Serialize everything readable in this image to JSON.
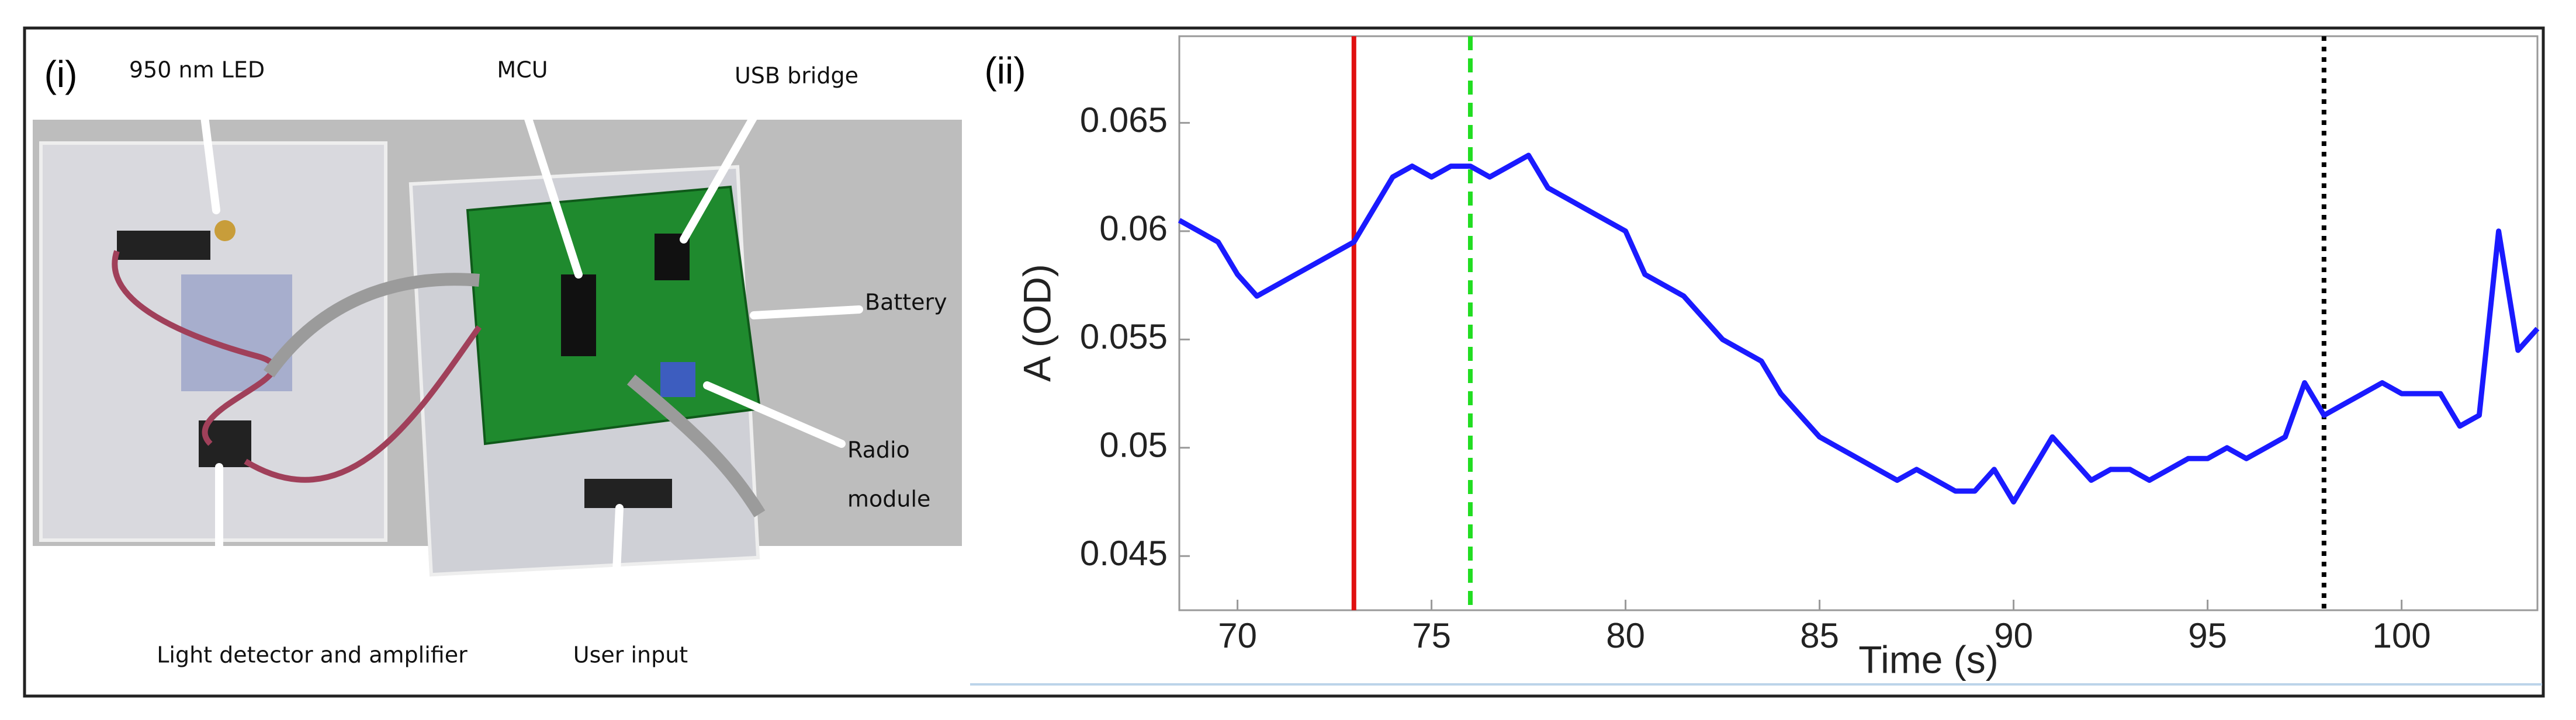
{
  "panels": {
    "left_label": "(i)",
    "right_label": "(ii)"
  },
  "photo": {
    "labels": {
      "led": "950 nm LED",
      "mcu": "MCU",
      "usb": "USB bridge",
      "battery": "Battery",
      "radio": [
        "Radio",
        "module"
      ],
      "detector": "Light detector and amplifier",
      "user_input": "User input"
    }
  },
  "chart_data": {
    "type": "line",
    "x_label": "Time (s)",
    "y_label": "A (OD)",
    "xlim": [
      68.5,
      103.5
    ],
    "ylim": [
      0.0425,
      0.069
    ],
    "xticks": [
      70,
      75,
      80,
      85,
      90,
      95,
      100
    ],
    "yticks": [
      0.045,
      0.05,
      0.055,
      0.06,
      0.065
    ],
    "x": [
      68.5,
      69,
      69.5,
      70,
      70.5,
      71,
      71.5,
      72,
      72.5,
      73,
      73.5,
      74,
      74.5,
      75,
      75.5,
      76,
      76.5,
      77,
      77.5,
      78,
      78.5,
      79,
      79.5,
      80,
      80.5,
      81,
      81.5,
      82,
      82.5,
      83,
      83.5,
      84,
      84.5,
      85,
      85.5,
      86,
      86.5,
      87,
      87.5,
      88,
      88.5,
      89,
      89.5,
      90,
      90.5,
      91,
      91.5,
      92,
      92.5,
      93,
      93.5,
      94,
      94.5,
      95,
      95.5,
      96,
      96.5,
      97,
      97.5,
      98,
      98.5,
      99,
      99.5,
      100,
      100.5,
      101,
      101.5,
      102,
      102.5,
      103,
      103.5
    ],
    "series": [
      {
        "color": "#1a1aff",
        "values": [
          0.0605,
          0.06,
          0.0595,
          0.058,
          0.057,
          0.0575,
          0.058,
          0.0585,
          0.059,
          0.0595,
          0.061,
          0.0625,
          0.063,
          0.0625,
          0.063,
          0.063,
          0.0625,
          0.063,
          0.0635,
          0.062,
          0.0615,
          0.061,
          0.0605,
          0.06,
          0.058,
          0.0575,
          0.057,
          0.056,
          0.055,
          0.0545,
          0.054,
          0.0525,
          0.0515,
          0.0505,
          0.05,
          0.0495,
          0.049,
          0.0485,
          0.049,
          0.0485,
          0.048,
          0.048,
          0.049,
          0.0475,
          0.049,
          0.0505,
          0.0495,
          0.0485,
          0.049,
          0.049,
          0.0485,
          0.049,
          0.0495,
          0.0495,
          0.05,
          0.0495,
          0.05,
          0.0505,
          0.053,
          0.0515,
          0.052,
          0.0525,
          0.053,
          0.0525,
          0.0525,
          0.0525,
          0.051,
          0.0515,
          0.06,
          0.0545,
          0.0555
        ]
      }
    ],
    "markers": [
      {
        "x": 73,
        "color": "#e01010",
        "style": "solid"
      },
      {
        "x": 76,
        "color": "#22dd22",
        "style": "dashed"
      },
      {
        "x": 98,
        "color": "#000000",
        "style": "dotted"
      }
    ]
  }
}
